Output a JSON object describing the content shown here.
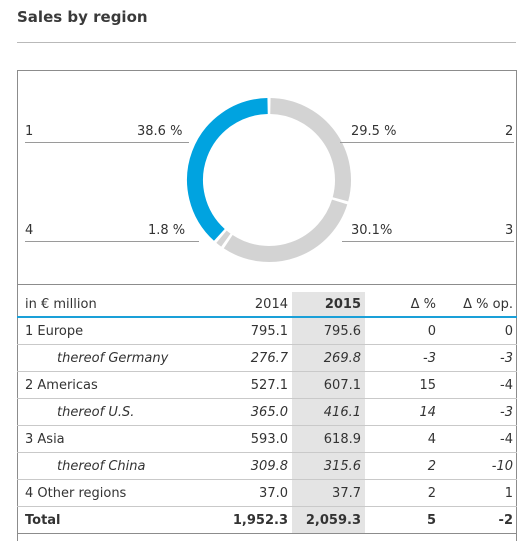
{
  "title": "Sales by region",
  "chart_data": {
    "type": "pie",
    "style": "donut",
    "slices": [
      {
        "number": "1",
        "share_label": "38.6 %",
        "value": 38.6,
        "color": "#00a3e0"
      },
      {
        "number": "2",
        "share_label": "29.5 %",
        "value": 29.5,
        "color": "#d3d3d3"
      },
      {
        "number": "3",
        "share_label": "30.1%",
        "value": 30.1,
        "color": "#d3d3d3"
      },
      {
        "number": "4",
        "share_label": "1.8 %",
        "value": 1.8,
        "color": "#d3d3d3"
      }
    ]
  },
  "table": {
    "header": {
      "label": "in € million",
      "y2014": "2014",
      "y2015": "2015",
      "delta": "Δ %",
      "delta_op": "Δ % op."
    },
    "rows": [
      {
        "name": "1 Europe",
        "y2014": "795.1",
        "y2015": "795.6",
        "delta": "0",
        "delta_op": "0",
        "sub": false
      },
      {
        "name": "thereof Germany",
        "y2014": "276.7",
        "y2015": "269.8",
        "delta": "-3",
        "delta_op": "-3",
        "sub": true
      },
      {
        "name": "2 Americas",
        "y2014": "527.1",
        "y2015": "607.1",
        "delta": "15",
        "delta_op": "-4",
        "sub": false
      },
      {
        "name": "thereof U.S.",
        "y2014": "365.0",
        "y2015": "416.1",
        "delta": "14",
        "delta_op": "-3",
        "sub": true
      },
      {
        "name": "3 Asia",
        "y2014": "593.0",
        "y2015": "618.9",
        "delta": "4",
        "delta_op": "-4",
        "sub": false
      },
      {
        "name": "thereof China",
        "y2014": "309.8",
        "y2015": "315.6",
        "delta": "2",
        "delta_op": "-10",
        "sub": true
      },
      {
        "name": "4 Other regions",
        "y2014": "37.0",
        "y2015": "37.7",
        "delta": "2",
        "delta_op": "1",
        "sub": false
      }
    ],
    "total": {
      "name": "Total",
      "y2014": "1,952.3",
      "y2015": "2,059.3",
      "delta": "5",
      "delta_op": "-2"
    }
  }
}
